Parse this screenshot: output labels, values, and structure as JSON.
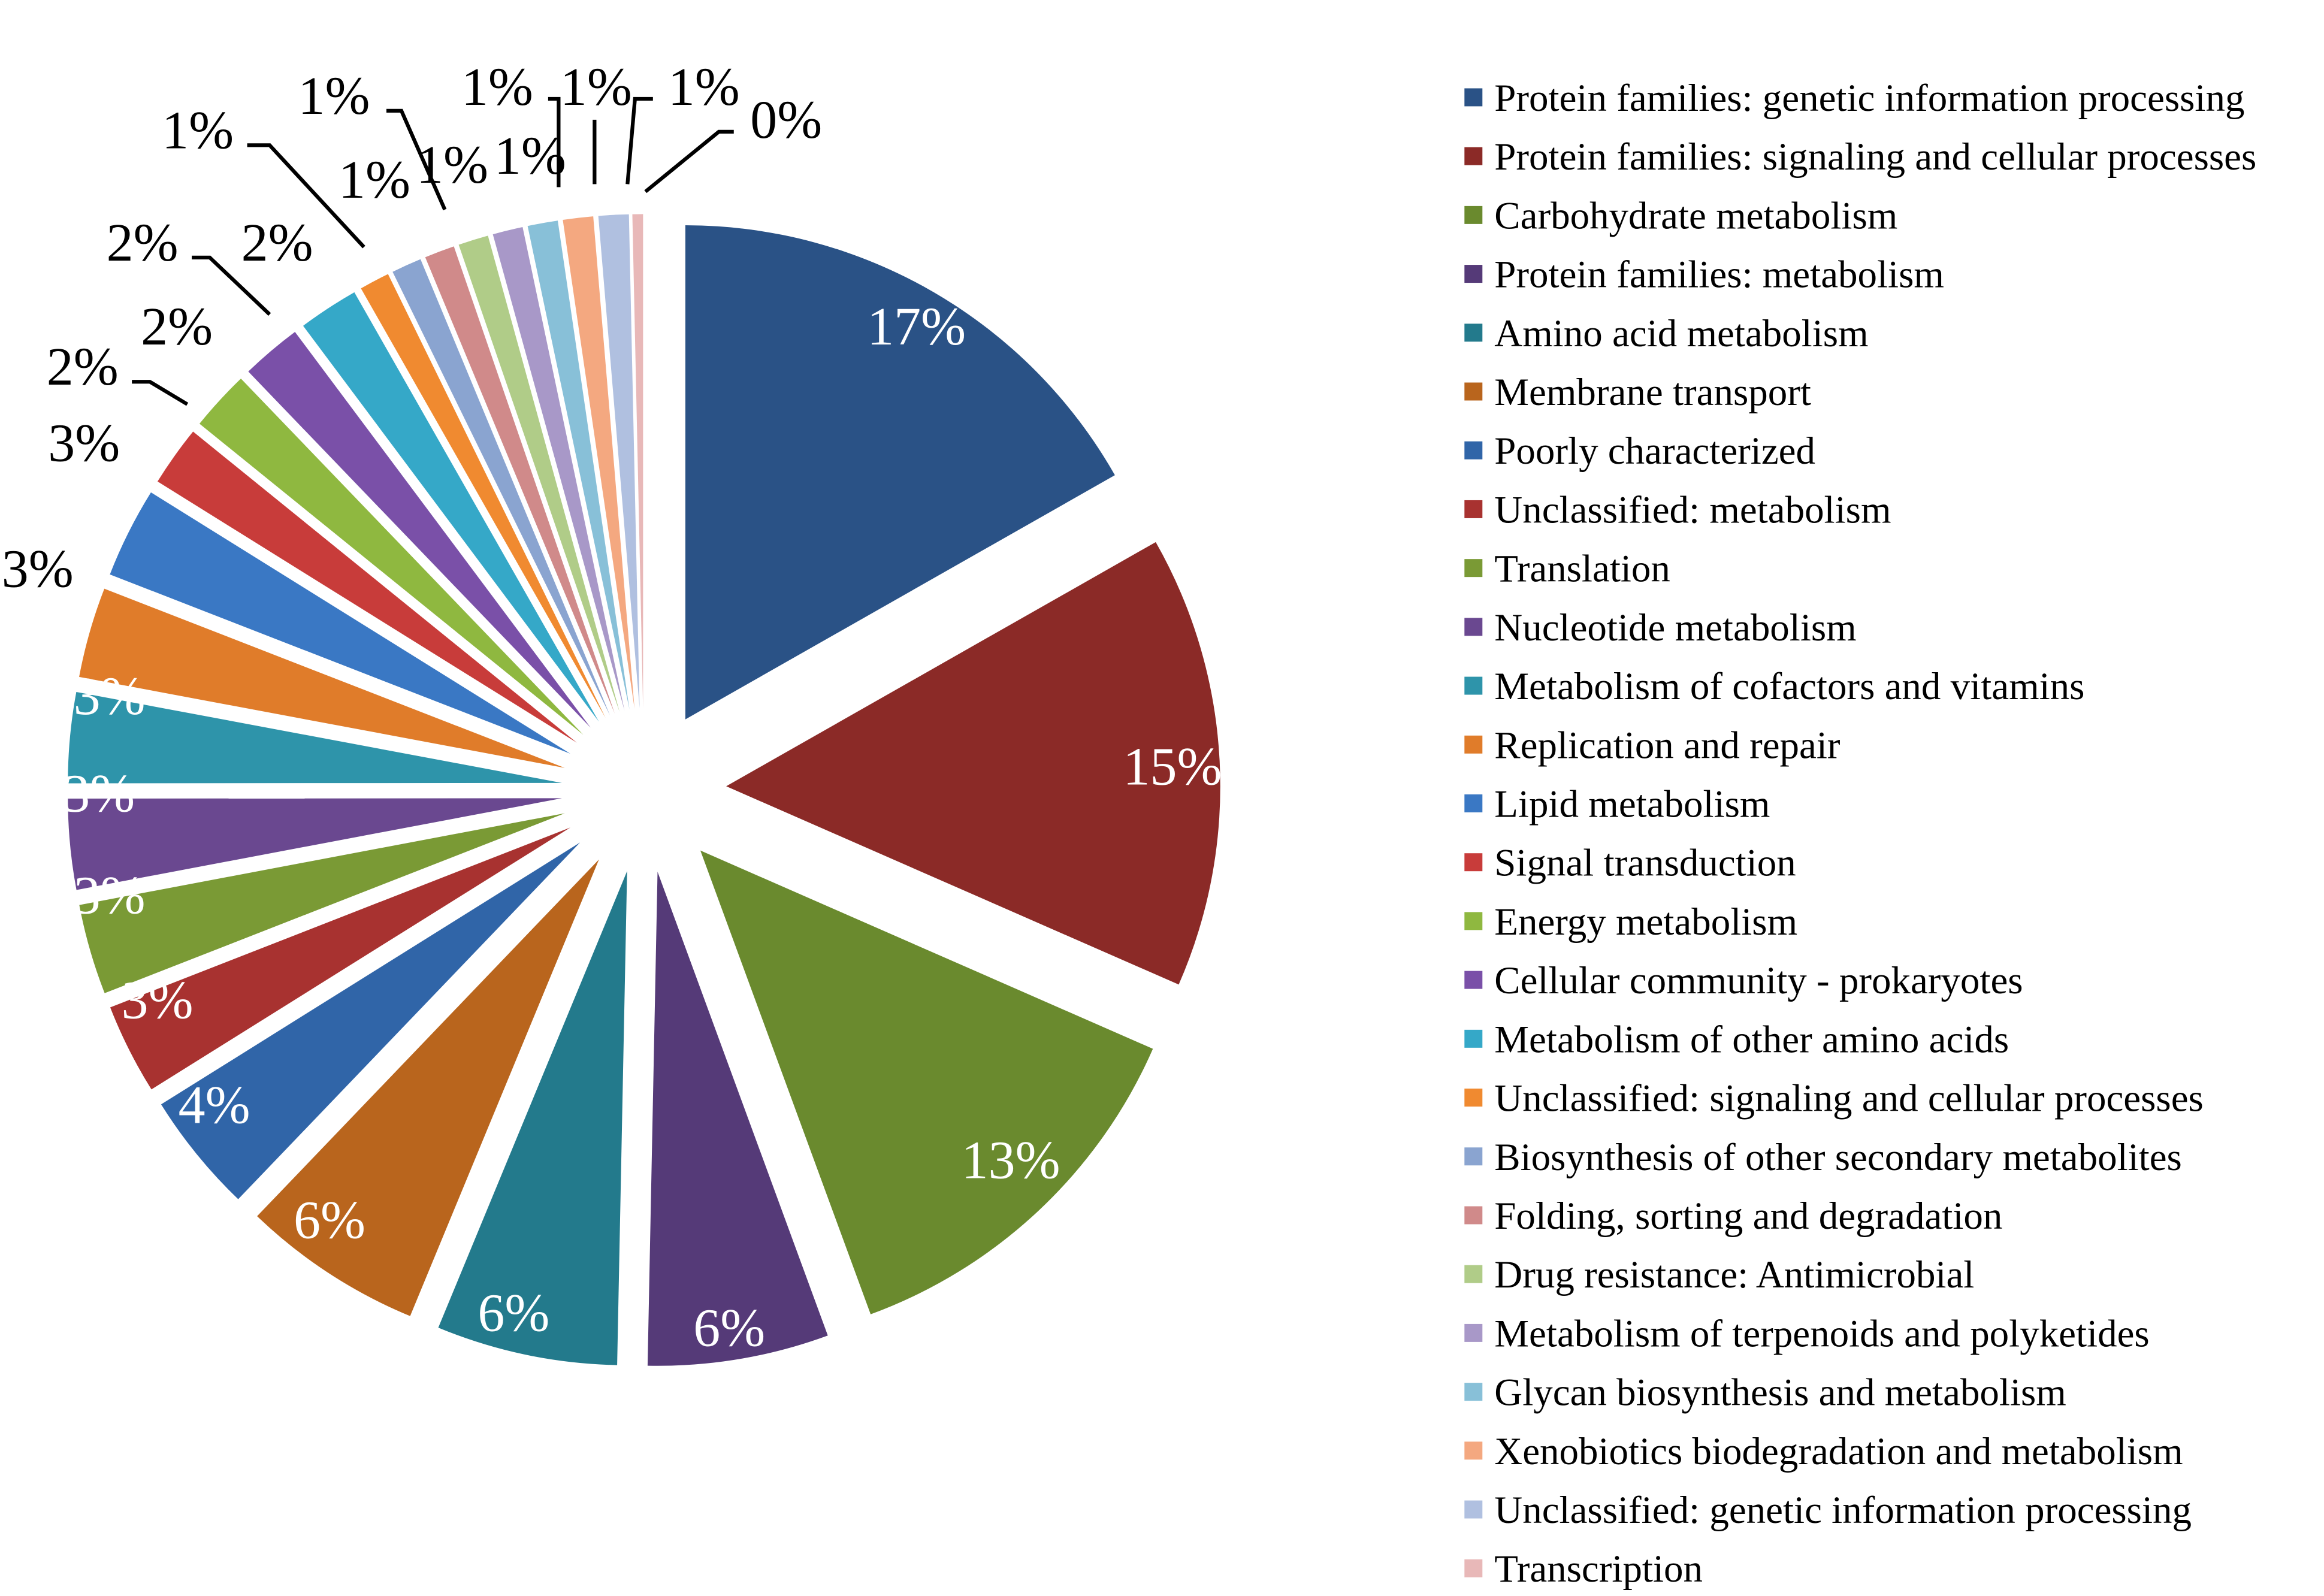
{
  "chart_data": {
    "type": "pie",
    "exploded": true,
    "start_angle": "12 o'clock",
    "direction": "clockwise",
    "legend_position": "right",
    "slices": [
      {
        "name": "Protein families: genetic information processing",
        "value": 17,
        "label": "17%",
        "color": "#2a5286"
      },
      {
        "name": "Protein families: signaling and cellular processes",
        "value": 15,
        "label": "15%",
        "color": "#8b2a27"
      },
      {
        "name": "Carbohydrate metabolism",
        "value": 13,
        "label": "13%",
        "color": "#6a8a2e"
      },
      {
        "name": "Protein families: metabolism",
        "value": 6,
        "label": "6%",
        "color": "#553a78"
      },
      {
        "name": "Amino acid metabolism",
        "value": 6,
        "label": "6%",
        "color": "#237a8c"
      },
      {
        "name": "Membrane transport",
        "value": 6,
        "label": "6%",
        "color": "#b9651d"
      },
      {
        "name": "Poorly characterized",
        "value": 4,
        "label": "4%",
        "color": "#3065a8"
      },
      {
        "name": "Unclassified: metabolism",
        "value": 3,
        "label": "3%",
        "color": "#a83230"
      },
      {
        "name": "Translation",
        "value": 3,
        "label": "3%",
        "color": "#7a9a35"
      },
      {
        "name": "Nucleotide metabolism",
        "value": 3,
        "label": "3%",
        "color": "#6a4890"
      },
      {
        "name": "Metabolism of cofactors and vitamins",
        "value": 3,
        "label": "3%",
        "color": "#2e94aa"
      },
      {
        "name": "Replication and repair",
        "value": 3,
        "label": "3%",
        "color": "#e07c2a"
      },
      {
        "name": "Lipid metabolism",
        "value": 3,
        "label": "3%",
        "color": "#3a78c4"
      },
      {
        "name": "Signal transduction",
        "value": 2,
        "label": "2%",
        "color": "#c83c3a"
      },
      {
        "name": "Energy metabolism",
        "value": 2,
        "label": "2%",
        "color": "#8fb840"
      },
      {
        "name": "Cellular community - prokaryotes",
        "value": 2,
        "label": "2%",
        "color": "#7a50a8"
      },
      {
        "name": "Metabolism of other amino acids",
        "value": 2,
        "label": "2%",
        "color": "#35a8c8"
      },
      {
        "name": "Unclassified: signaling and cellular processes",
        "value": 1,
        "label": "1%",
        "color": "#f08a30"
      },
      {
        "name": "Biosynthesis of other secondary metabolites",
        "value": 1,
        "label": "1%",
        "color": "#8aa4d0"
      },
      {
        "name": "Folding, sorting and degradation",
        "value": 1,
        "label": "1%",
        "color": "#d08a8a"
      },
      {
        "name": "Drug resistance: Antimicrobial",
        "value": 1,
        "label": "1%",
        "color": "#b0cc88"
      },
      {
        "name": "Metabolism of terpenoids and polyketides",
        "value": 1,
        "label": "1%",
        "color": "#a898c8"
      },
      {
        "name": "Glycan biosynthesis and metabolism",
        "value": 1,
        "label": "1%",
        "color": "#88c0d8"
      },
      {
        "name": "Xenobiotics biodegradation and metabolism",
        "value": 1,
        "label": "1%",
        "color": "#f4a880"
      },
      {
        "name": "Unclassified: genetic information processing",
        "value": 1,
        "label": "1%",
        "color": "#b0c0e0"
      },
      {
        "name": "Transcription",
        "value": 0,
        "label": "0%",
        "color": "#e8b8b8"
      }
    ]
  }
}
